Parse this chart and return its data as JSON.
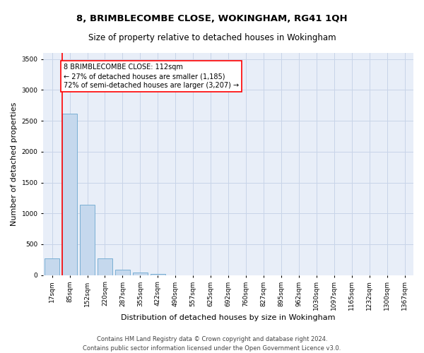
{
  "title": "8, BRIMBLECOMBE CLOSE, WOKINGHAM, RG41 1QH",
  "subtitle": "Size of property relative to detached houses in Wokingham",
  "xlabel": "Distribution of detached houses by size in Wokingham",
  "ylabel": "Number of detached properties",
  "bar_color": "#c5d8ed",
  "bar_edgecolor": "#7aafd4",
  "vline_color": "red",
  "annotation_text": "8 BRIMBLECOMBE CLOSE: 112sqm\n← 27% of detached houses are smaller (1,185)\n72% of semi-detached houses are larger (3,207) →",
  "annotation_box_color": "white",
  "annotation_box_edgecolor": "red",
  "categories": [
    "17sqm",
    "85sqm",
    "152sqm",
    "220sqm",
    "287sqm",
    "355sqm",
    "422sqm",
    "490sqm",
    "557sqm",
    "625sqm",
    "692sqm",
    "760sqm",
    "827sqm",
    "895sqm",
    "962sqm",
    "1030sqm",
    "1097sqm",
    "1165sqm",
    "1232sqm",
    "1300sqm",
    "1367sqm"
  ],
  "values": [
    270,
    2620,
    1140,
    275,
    90,
    45,
    20,
    0,
    0,
    0,
    0,
    0,
    0,
    0,
    0,
    0,
    0,
    0,
    0,
    0,
    0
  ],
  "ylim": [
    0,
    3600
  ],
  "yticks": [
    0,
    500,
    1000,
    1500,
    2000,
    2500,
    3000,
    3500
  ],
  "grid_color": "#c8d4e8",
  "background_color": "#e8eef8",
  "footer": "Contains HM Land Registry data © Crown copyright and database right 2024.\nContains public sector information licensed under the Open Government Licence v3.0.",
  "title_fontsize": 9.5,
  "subtitle_fontsize": 8.5,
  "xlabel_fontsize": 8,
  "ylabel_fontsize": 8,
  "tick_fontsize": 6.5,
  "footer_fontsize": 6,
  "vline_position": 0.575,
  "annot_fontsize": 7
}
